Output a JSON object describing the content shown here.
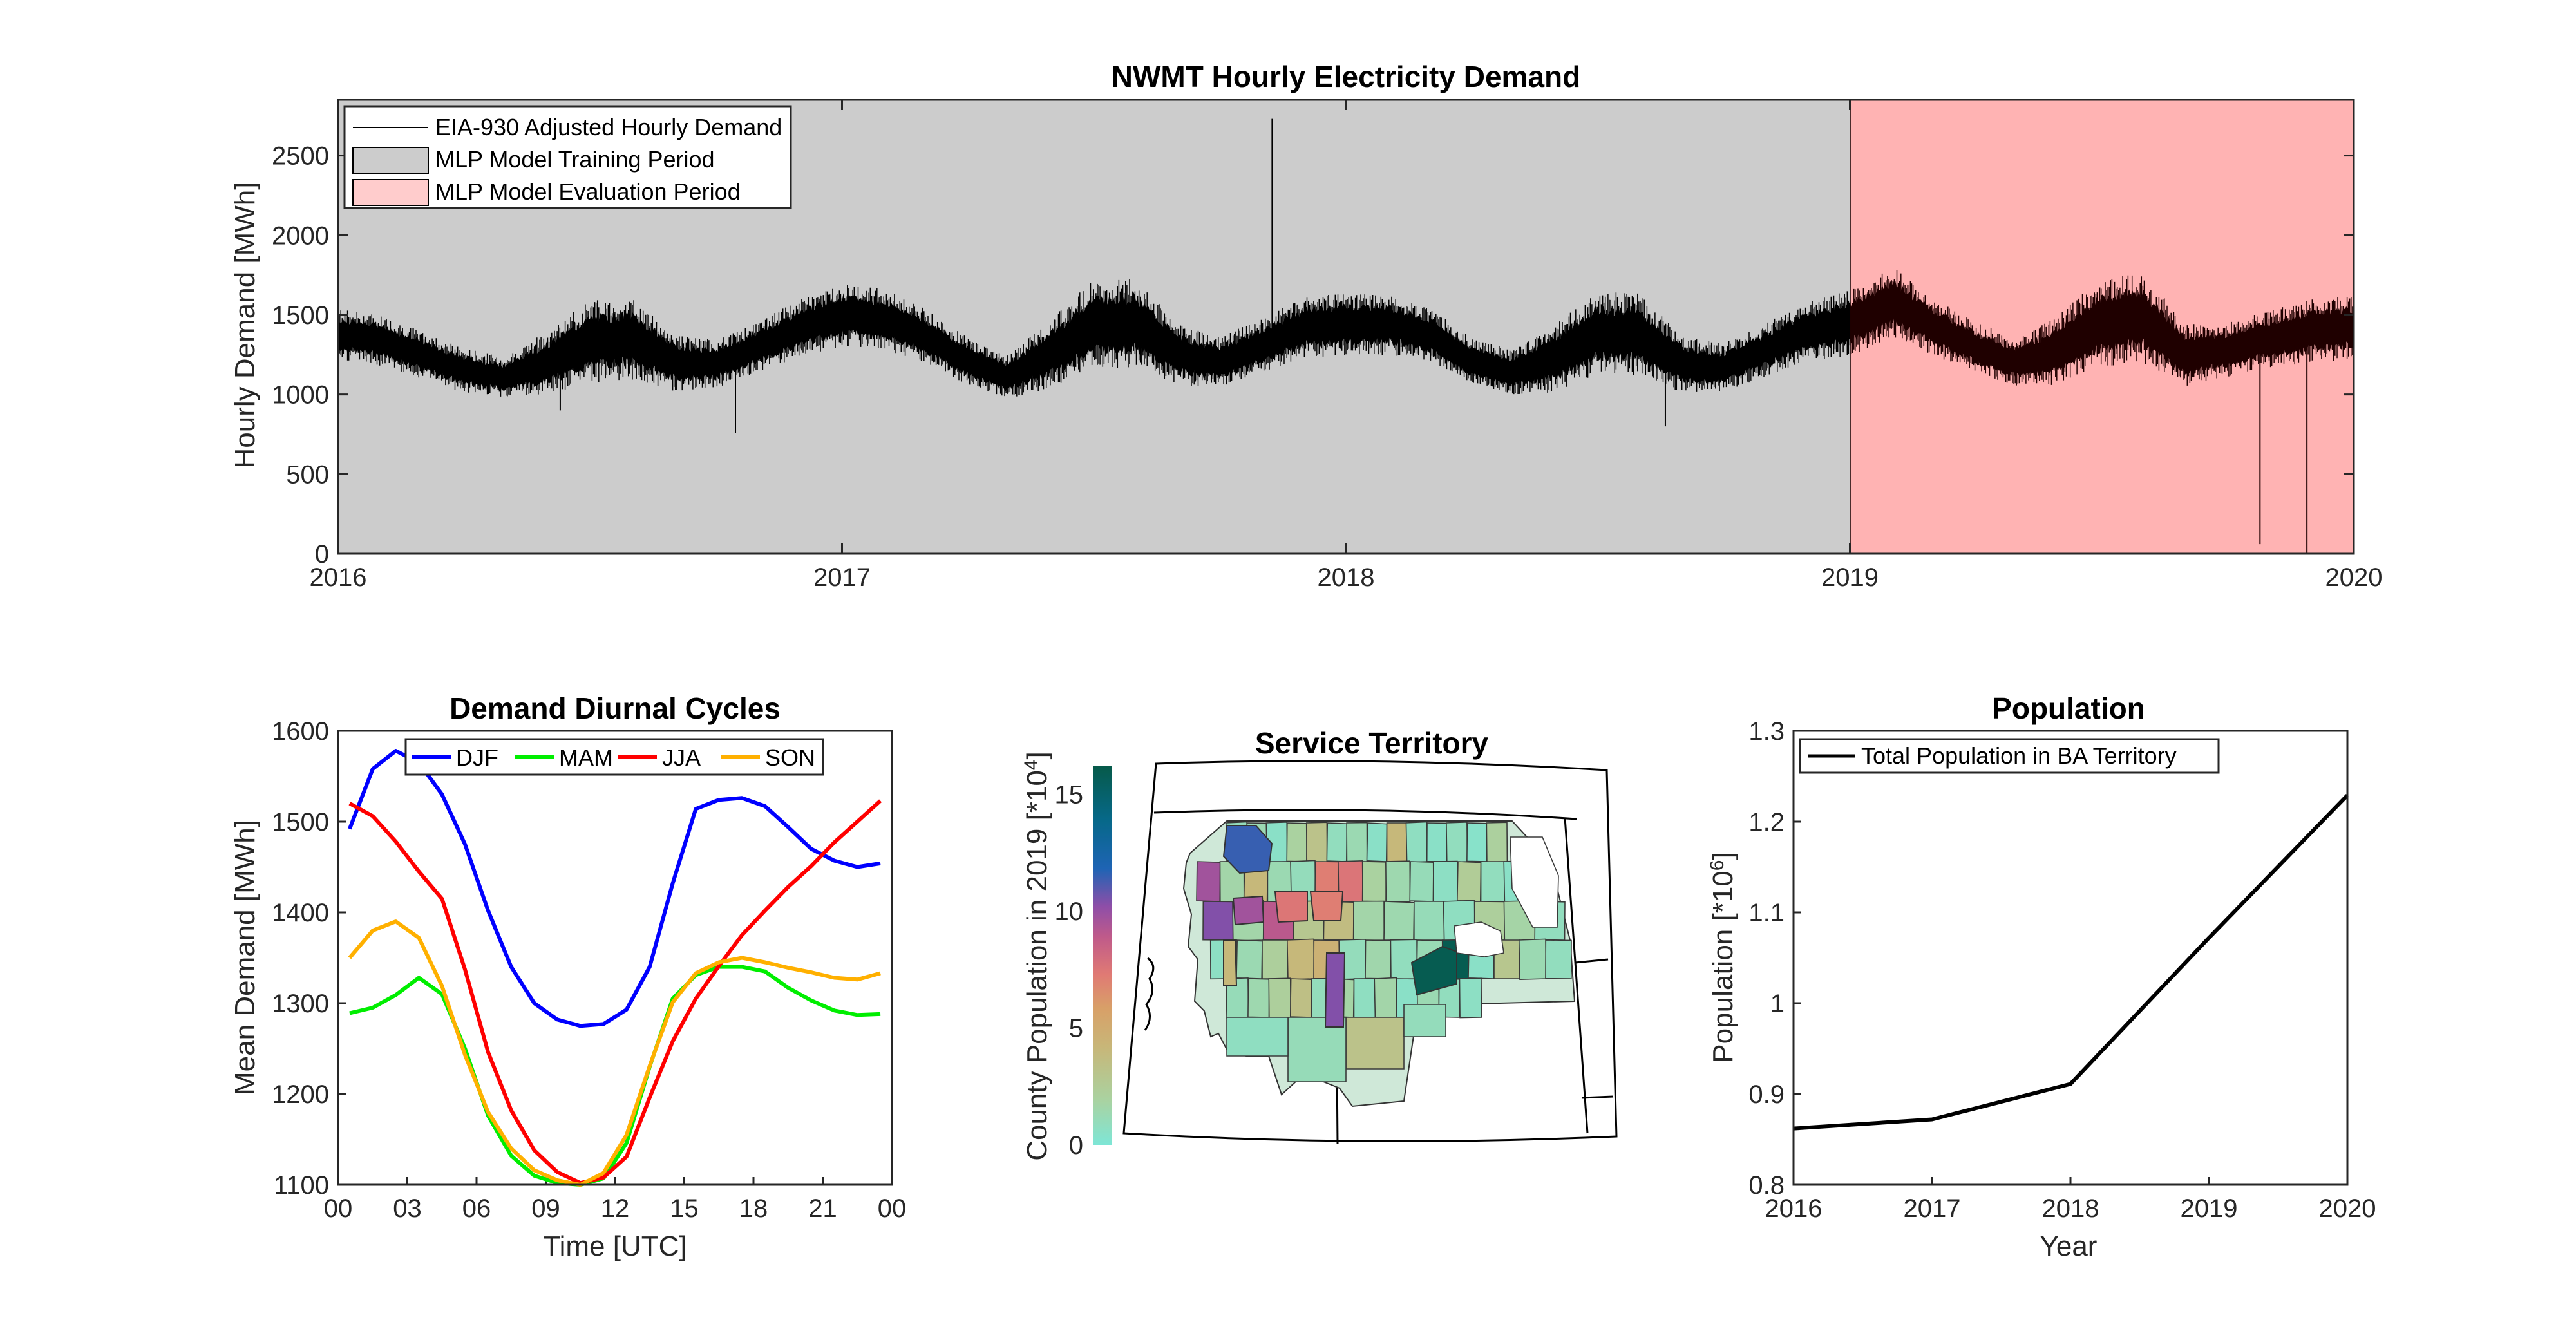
{
  "chart_data": [
    {
      "type": "line",
      "title": "NWMT Hourly Electricity Demand",
      "ylabel": "Hourly Demand [MWh]",
      "xlabel": "",
      "x_ticks": [
        "2016",
        "2017",
        "2018",
        "2019",
        "2020"
      ],
      "y_ticks": [
        "0",
        "500",
        "1000",
        "1500",
        "2000",
        "2500"
      ],
      "xlim": [
        "2016-01-01",
        "2020-01-01"
      ],
      "ylim": [
        0,
        2850
      ],
      "legend": {
        "position": "top-left",
        "entries": [
          "EIA-930 Adjusted Hourly Demand",
          "MLP Model Training Period",
          "MLP Model Evaluation Period"
        ]
      },
      "shaded_periods": [
        {
          "name": "MLP Model Training Period",
          "start": "2016-01-01",
          "end": "2019-01-01",
          "color": "#cccccc"
        },
        {
          "name": "MLP Model Evaluation Period",
          "start": "2019-01-01",
          "end": "2020-01-01",
          "color": "#ffcccc"
        }
      ],
      "series": [
        {
          "name": "EIA-930 Adjusted Hourly Demand",
          "color": "#000000",
          "x": [
            "2016-01-01",
            "2016-02-01",
            "2016-03-01",
            "2016-04-01",
            "2016-05-01",
            "2016-06-01",
            "2016-07-01",
            "2016-08-01",
            "2016-09-01",
            "2016-10-01",
            "2016-11-01",
            "2016-12-01",
            "2017-01-01",
            "2017-02-01",
            "2017-03-01",
            "2017-04-01",
            "2017-05-01",
            "2017-06-01",
            "2017-07-01",
            "2017-08-01",
            "2017-09-01",
            "2017-10-01",
            "2017-11-01",
            "2017-12-01",
            "2018-01-01",
            "2018-02-01",
            "2018-03-01",
            "2018-04-01",
            "2018-05-01",
            "2018-06-01",
            "2018-07-01",
            "2018-08-01",
            "2018-09-01",
            "2018-10-01",
            "2018-11-01",
            "2018-12-01",
            "2019-01-01",
            "2019-02-01",
            "2019-03-01",
            "2019-04-01",
            "2019-05-01",
            "2019-06-01",
            "2019-07-01",
            "2019-08-01",
            "2019-09-01",
            "2019-10-01",
            "2019-11-01",
            "2019-12-01",
            "2020-01-01"
          ],
          "mean": [
            1380,
            1340,
            1250,
            1150,
            1110,
            1200,
            1330,
            1350,
            1200,
            1190,
            1300,
            1420,
            1500,
            1470,
            1370,
            1210,
            1110,
            1260,
            1440,
            1450,
            1250,
            1200,
            1310,
            1420,
            1440,
            1440,
            1380,
            1210,
            1140,
            1230,
            1380,
            1380,
            1190,
            1170,
            1280,
            1400,
            1450,
            1580,
            1430,
            1300,
            1200,
            1280,
            1450,
            1480,
            1250,
            1280,
            1350,
            1400,
            1420
          ],
          "band": [
            160,
            160,
            150,
            140,
            130,
            200,
            260,
            260,
            180,
            150,
            160,
            180,
            200,
            190,
            170,
            150,
            140,
            220,
            280,
            280,
            190,
            160,
            170,
            190,
            200,
            190,
            170,
            150,
            140,
            220,
            260,
            260,
            180,
            150,
            170,
            190,
            210,
            220,
            180,
            160,
            150,
            220,
            280,
            280,
            200,
            170,
            180,
            200,
            200
          ],
          "spikes": [
            {
              "x": "2016-06-10",
              "y": 900
            },
            {
              "x": "2016-10-15",
              "y": 760
            },
            {
              "x": "2017-11-08",
              "y": 2730
            },
            {
              "x": "2018-08-20",
              "y": 800
            },
            {
              "x": "2019-10-25",
              "y": 60
            },
            {
              "x": "2019-11-28",
              "y": 0
            }
          ]
        }
      ]
    },
    {
      "type": "line",
      "title": "Demand Diurnal Cycles",
      "xlabel": "Time [UTC]",
      "ylabel": "Mean Demand [MWh]",
      "x_ticks": [
        "00",
        "03",
        "06",
        "09",
        "12",
        "15",
        "18",
        "21",
        "00"
      ],
      "y_ticks": [
        "1100",
        "1200",
        "1300",
        "1400",
        "1500",
        "1600"
      ],
      "xlim": [
        0,
        24
      ],
      "ylim": [
        1100,
        1600
      ],
      "legend": {
        "position": "top",
        "orientation": "horizontal"
      },
      "x": [
        0.5,
        1.5,
        2.5,
        3.5,
        4.5,
        5.5,
        6.5,
        7.5,
        8.5,
        9.5,
        10.5,
        11.5,
        12.5,
        13.5,
        14.5,
        15.5,
        16.5,
        17.5,
        18.5,
        19.5,
        20.5,
        21.5,
        22.5,
        23.5
      ],
      "series": [
        {
          "name": "DJF",
          "color": "#0000ff",
          "values": [
            1492,
            1558,
            1578,
            1565,
            1530,
            1475,
            1402,
            1340,
            1300,
            1282,
            1275,
            1277,
            1293,
            1340,
            1432,
            1514,
            1524,
            1526,
            1517,
            1494,
            1470,
            1457,
            1450,
            1454
          ]
        },
        {
          "name": "MAM",
          "color": "#00ee00",
          "values": [
            1289,
            1295,
            1309,
            1328,
            1310,
            1250,
            1176,
            1132,
            1110,
            1102,
            1100,
            1107,
            1146,
            1230,
            1305,
            1331,
            1340,
            1340,
            1335,
            1317,
            1303,
            1292,
            1287,
            1288
          ]
        },
        {
          "name": "JJA",
          "color": "#ff0000",
          "values": [
            1520,
            1506,
            1478,
            1445,
            1415,
            1337,
            1246,
            1182,
            1138,
            1114,
            1102,
            1108,
            1131,
            1196,
            1258,
            1305,
            1341,
            1375,
            1402,
            1428,
            1451,
            1477,
            1500,
            1523
          ]
        },
        {
          "name": "SON",
          "color": "#ffb000",
          "values": [
            1350,
            1380,
            1390,
            1372,
            1319,
            1243,
            1180,
            1140,
            1116,
            1105,
            1100,
            1113,
            1155,
            1231,
            1301,
            1333,
            1345,
            1350,
            1345,
            1339,
            1334,
            1328,
            1326,
            1333
          ]
        }
      ]
    },
    {
      "type": "heatmap",
      "title": "Service Territory",
      "colorbar_label": "County Population in 2019 [*10",
      "colorbar_label_sup": "4",
      "colorbar_label_end": "]",
      "colorbar_ticks": [
        "0",
        "5",
        "10",
        "15"
      ],
      "colorbar_range": [
        0,
        16.2
      ],
      "colormap": [
        "#7ee6d6",
        "#aad2a0",
        "#c8b678",
        "#d8a068",
        "#e07a74",
        "#bf5a8a",
        "#8e4ea8",
        "#1e64b4",
        "#066888",
        "#065a4a"
      ],
      "county_values": [
        0.9,
        1.2,
        0.5,
        1.8,
        2.8,
        0.8,
        1.2,
        0.5,
        3.5,
        0.7,
        0.5,
        0.8,
        0.4,
        1.9,
        10.1,
        1.5,
        3.5,
        1.2,
        0.9,
        7.0,
        7.5,
        1.8,
        1.3,
        1.0,
        0.6,
        2.2,
        0.8,
        0.5,
        1.4,
        11.0,
        1.5,
        9.2,
        2.5,
        3.2,
        1.5,
        1.3,
        1.0,
        0.7,
        2.0,
        1.6,
        0.8,
        0.6,
        1.2,
        2.0,
        3.5,
        4.0,
        0.9,
        1.4,
        0.8,
        1.1,
        16.0,
        0.5,
        2.6,
        1.2,
        0.8,
        1.0,
        1.3,
        2.0,
        3.0,
        0.9,
        1.6,
        0.7,
        1.5,
        0.5,
        1.2,
        0.8,
        0.6
      ]
    },
    {
      "type": "line",
      "title": "Population",
      "xlabel": "Year",
      "ylabel": "Population [*10",
      "ylabel_sup": "6",
      "ylabel_end": "]",
      "x_ticks": [
        "2016",
        "2017",
        "2018",
        "2019",
        "2020"
      ],
      "y_ticks": [
        "0.8",
        "0.9",
        "1",
        "1.1",
        "1.2",
        "1.3"
      ],
      "xlim": [
        2016,
        2020
      ],
      "ylim": [
        0.8,
        1.3
      ],
      "legend": {
        "position": "top-left"
      },
      "x": [
        2016,
        2017,
        2018,
        2019,
        2020
      ],
      "series": [
        {
          "name": "Total Population in BA Territory",
          "color": "#000000",
          "values": [
            0.862,
            0.872,
            0.911,
            1.072,
            1.229
          ]
        }
      ]
    }
  ]
}
